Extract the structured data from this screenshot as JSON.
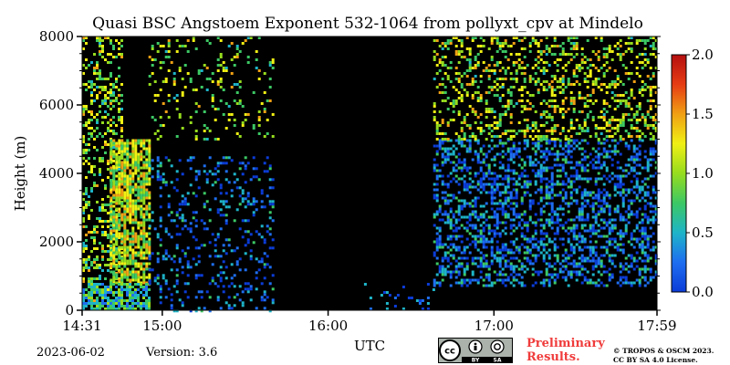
{
  "page": {
    "date": "2023-06-02",
    "version": "Version: 3.6",
    "preliminary_line1": "Preliminary",
    "preliminary_line2": "Results.",
    "copyright_line1": "© TROPOS & OSCM 2023.",
    "copyright_line2": "CC BY SA 4.0 License.",
    "license_badge": [
      "cc",
      "BY",
      "SA"
    ]
  },
  "chart_data": {
    "type": "heatmap",
    "title": "Quasi BSC Angstoem Exponent 532-1064 from pollyxt_cpv at Mindelo",
    "xlabel": "UTC",
    "ylabel": "Height (m)",
    "xlim": [
      "14:31",
      "17:59"
    ],
    "ylim": [
      0,
      8000
    ],
    "x_ticks": [
      "14:31",
      "15:00",
      "16:00",
      "17:00",
      "17:59"
    ],
    "y_ticks": [
      0,
      2000,
      4000,
      6000,
      8000
    ],
    "colorbar": {
      "range": [
        0.0,
        2.0
      ],
      "ticks": [
        "0.0",
        "0.5",
        "1.0",
        "1.5",
        "2.0"
      ],
      "colormap": [
        "#0b3cd8",
        "#1e6ef0",
        "#1eb4c8",
        "#3cc864",
        "#96dc1e",
        "#f0f014",
        "#f0a014",
        "#e63c14",
        "#b40f0f"
      ]
    },
    "background_color": "#000000",
    "grid": false,
    "regions": [
      {
        "x": [
          "14:31",
          "14:45"
        ],
        "height": [
          0,
          8000
        ],
        "value": 1.0,
        "density": 0.35
      },
      {
        "x": [
          "14:41",
          "14:55"
        ],
        "height": [
          800,
          5000
        ],
        "value": 1.1,
        "density": 0.75
      },
      {
        "x": [
          "14:31",
          "14:55"
        ],
        "height": [
          0,
          800
        ],
        "value": 0.6,
        "density": 0.7
      },
      {
        "x": [
          "14:55",
          "15:40"
        ],
        "height": [
          0,
          4500
        ],
        "value": 0.25,
        "density": 0.18
      },
      {
        "x": [
          "14:55",
          "15:40"
        ],
        "height": [
          5000,
          8000
        ],
        "value": 1.0,
        "density": 0.12
      },
      {
        "x": [
          "16:12",
          "16:38"
        ],
        "height": [
          0,
          800
        ],
        "value": 0.1,
        "density": 0.1
      },
      {
        "x": [
          "16:38",
          "17:59"
        ],
        "height": [
          700,
          5000
        ],
        "value": 0.3,
        "density": 0.42
      },
      {
        "x": [
          "16:38",
          "17:59"
        ],
        "height": [
          5000,
          8000
        ],
        "value": 1.05,
        "density": 0.3
      }
    ]
  }
}
